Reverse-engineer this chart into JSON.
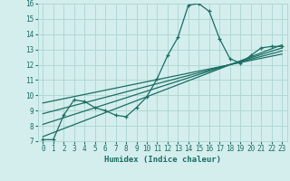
{
  "xlabel": "Humidex (Indice chaleur)",
  "bg_color": "#d4eeed",
  "grid_color": "#b0d8d4",
  "line_color": "#1a6e64",
  "xlim": [
    -0.5,
    23.5
  ],
  "ylim": [
    7,
    16
  ],
  "yticks": [
    7,
    8,
    9,
    10,
    11,
    12,
    13,
    14,
    15,
    16
  ],
  "xticks": [
    0,
    1,
    2,
    3,
    4,
    5,
    6,
    7,
    8,
    9,
    10,
    11,
    12,
    13,
    14,
    15,
    16,
    17,
    18,
    19,
    20,
    21,
    22,
    23
  ],
  "series1_x": [
    0,
    1,
    2,
    3,
    4,
    5,
    6,
    7,
    8,
    9,
    10,
    11,
    12,
    13,
    14,
    15,
    16,
    17,
    18,
    19,
    20,
    21,
    22,
    23
  ],
  "series1_y": [
    7.1,
    7.1,
    8.7,
    9.7,
    9.6,
    9.2,
    9.0,
    8.7,
    8.6,
    9.2,
    9.9,
    11.1,
    12.6,
    13.8,
    15.9,
    16.0,
    15.5,
    13.7,
    12.4,
    12.1,
    12.6,
    13.1,
    13.2,
    13.2
  ],
  "trend_lines": [
    [
      [
        0,
        23
      ],
      [
        7.3,
        13.3
      ]
    ],
    [
      [
        0,
        23
      ],
      [
        8.1,
        13.1
      ]
    ],
    [
      [
        0,
        23
      ],
      [
        8.8,
        12.9
      ]
    ],
    [
      [
        0,
        23
      ],
      [
        9.5,
        12.7
      ]
    ]
  ]
}
